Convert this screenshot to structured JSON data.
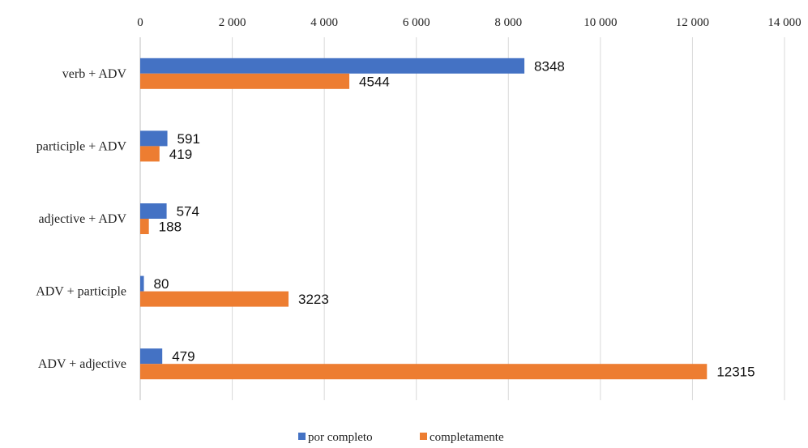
{
  "chart_data": {
    "type": "bar",
    "orientation": "horizontal",
    "categories": [
      "verb + ADV",
      "participle + ADV",
      "adjective + ADV",
      "ADV + participle",
      "ADV + adjective"
    ],
    "series": [
      {
        "name": "por completo",
        "color": "#4472C4",
        "values": [
          8348,
          591,
          574,
          80,
          479
        ]
      },
      {
        "name": "completamente",
        "color": "#ED7D31",
        "values": [
          4544,
          419,
          188,
          3223,
          12315
        ]
      }
    ],
    "xlim": [
      0,
      14000
    ],
    "x_ticks": [
      0,
      2000,
      4000,
      6000,
      8000,
      10000,
      12000,
      14000
    ],
    "x_tick_labels": [
      "0",
      "2 000",
      "4 000",
      "6 000",
      "8 000",
      "10 000",
      "12 000",
      "14 000"
    ],
    "x_axis_position": "top",
    "grid": true,
    "legend_position": "bottom",
    "title": "",
    "xlabel": "",
    "ylabel": ""
  }
}
